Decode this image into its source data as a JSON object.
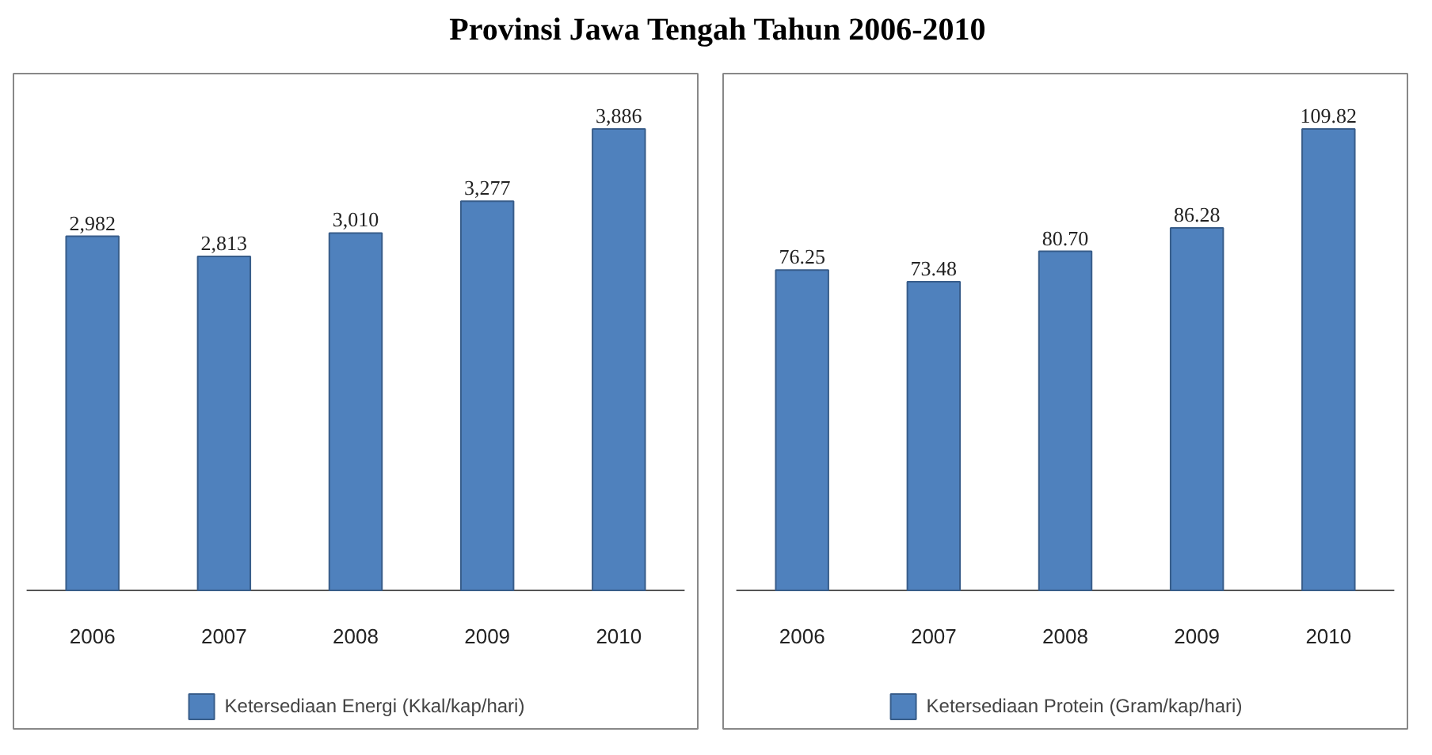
{
  "chart_data": [
    {
      "type": "bar",
      "title": "Provinsi Jawa Tengah Tahun 2006-2010",
      "categories": [
        "2006",
        "2007",
        "2008",
        "2009",
        "2010"
      ],
      "legend": "bottom",
      "series": [
        {
          "name": "Ketersediaan Energi (Kkal/kap/hari)",
          "color": "#4f81bd",
          "values": [
            2982,
            2813,
            3010,
            3277,
            3886
          ],
          "value_labels": [
            "2,982",
            "2,813",
            "3,010",
            "3,277",
            "3,886"
          ]
        }
      ]
    },
    {
      "type": "bar",
      "categories": [
        "2006",
        "2007",
        "2008",
        "2009",
        "2010"
      ],
      "legend": "bottom",
      "series": [
        {
          "name": "Ketersediaan Protein (Gram/kap/hari)",
          "color": "#4f81bd",
          "values": [
            76.25,
            73.48,
            80.7,
            86.28,
            109.82
          ],
          "value_labels": [
            "76.25",
            "73.48",
            "80.70",
            "86.28",
            "109.82"
          ]
        }
      ]
    }
  ]
}
